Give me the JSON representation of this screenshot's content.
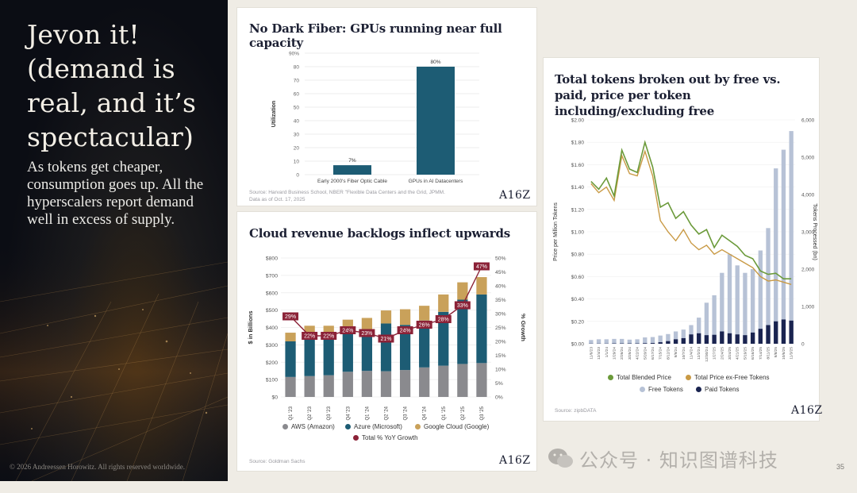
{
  "slide": {
    "headline": "Jevon it! (demand is real, and it’s spectacular)",
    "subtext": "As tokens get cheaper, consumption goes up. All the hyperscalers report demand well in excess of supply.",
    "copyright": "© 2026 Andreessen Horowitz. All rights reserved worldwide.",
    "page_number": "35",
    "watermark": "公众号 · 知识图谱科技"
  },
  "cards": {
    "gpu": {
      "title": "No Dark Fiber: GPUs running near full capacity",
      "source": "Source: Harvard Business School, NBER \"Flexible Data Centers and the Grid, JPMM. Data as of Oct. 17, 2025",
      "logo": "A16Z"
    },
    "cloud": {
      "title": "Cloud revenue backlogs inflect upwards",
      "source": "Source: Goldman Sachs",
      "logo": "A16Z",
      "legend": [
        "AWS (Amazon)",
        "Azure (Microsoft)",
        "Google Cloud (Google)",
        "Total % YoY Growth"
      ]
    },
    "tokens": {
      "title": "Total tokens broken out by free vs. paid, price per token including/excluding free",
      "source": "Source: zipbDATA",
      "logo": "A16Z",
      "legend": [
        "Total Blended Price",
        "Total Price ex-Free Tokens",
        "Free Tokens",
        "Paid Tokens"
      ]
    }
  },
  "colors": {
    "teal": "#1d5c74",
    "aws": "#8a8a8e",
    "azure": "#1d5c74",
    "google": "#c9a15a",
    "growth": "#8b2237",
    "green": "#6b9a3a",
    "gold": "#c99a45",
    "free": "#b7c2d6",
    "paid": "#1a2450"
  },
  "chart_data": [
    {
      "type": "bar",
      "title": "No Dark Fiber: GPUs running near full capacity",
      "categories": [
        "Early 2000's Fiber Optic Cable",
        "GPUs in AI Datacenters"
      ],
      "values": [
        7,
        80
      ],
      "value_labels": [
        "7%",
        "80%"
      ],
      "xlabel": "",
      "ylabel": "Utilization",
      "ylim": [
        0,
        90
      ],
      "yticks": [
        "0",
        "10",
        "20",
        "30",
        "40",
        "50",
        "60",
        "70",
        "80",
        "90%"
      ]
    },
    {
      "type": "bar",
      "stacked": true,
      "title": "Cloud revenue backlogs inflect upwards",
      "categories": [
        "Q1 '23",
        "Q2 '23",
        "Q3 '23",
        "Q4 '23",
        "Q1 '24",
        "Q2 '24",
        "Q3 '24",
        "Q4 '24",
        "Q1 '25",
        "Q2 '25",
        "Q3 '25"
      ],
      "series": [
        {
          "name": "AWS (Amazon)",
          "values": [
            115,
            120,
            125,
            145,
            150,
            148,
            155,
            170,
            180,
            190,
            195
          ]
        },
        {
          "name": "Azure (Microsoft)",
          "values": [
            205,
            240,
            225,
            240,
            240,
            275,
            260,
            270,
            310,
            370,
            395
          ]
        },
        {
          "name": "Google Cloud (Google)",
          "values": [
            50,
            50,
            60,
            60,
            65,
            75,
            90,
            85,
            100,
            100,
            100
          ]
        }
      ],
      "line_series": {
        "name": "Total % YoY Growth",
        "values": [
          29,
          22,
          22,
          24,
          23,
          21,
          24,
          26,
          28,
          33,
          47
        ],
        "labels": [
          "29%",
          "22%",
          "22%",
          "24%",
          "23%",
          "21%",
          "24%",
          "26%",
          "28%",
          "33%",
          "47%"
        ]
      },
      "ylabel": "$ in Billions",
      "y2label": "% Growth",
      "ylim": [
        0,
        800
      ],
      "y2lim": [
        0,
        50
      ],
      "yticks": [
        "$0",
        "$100",
        "$200",
        "$300",
        "$400",
        "$500",
        "$600",
        "$700",
        "$800"
      ],
      "y2ticks": [
        "0%",
        "5%",
        "10%",
        "15%",
        "20%",
        "25%",
        "30%",
        "35%",
        "40%",
        "45%",
        "50%"
      ]
    },
    {
      "type": "bar",
      "mixed_with": "line",
      "title": "Total tokens broken out by free vs. paid, price per token including/excluding free",
      "categories": [
        "11/6/23",
        "12/4/23",
        "1/1/24",
        "1/29/24",
        "2/26/24",
        "3/25/24",
        "4/22/24",
        "5/20/24",
        "6/17/24",
        "7/15/24",
        "8/12/24",
        "9/9/24",
        "10/7/24",
        "11/4/24",
        "12/2/24",
        "12/30/24",
        "1/27/25",
        "2/24/25",
        "3/24/25",
        "4/21/25",
        "5/19/25",
        "6/16/25",
        "7/14/25",
        "8/11/25",
        "9/8/25",
        "10/6/25",
        "11/3/25"
      ],
      "series": [
        {
          "name": "Free Tokens",
          "values": [
            100,
            120,
            120,
            130,
            130,
            110,
            120,
            170,
            180,
            220,
            260,
            330,
            380,
            500,
            700,
            1100,
            1300,
            1900,
            2400,
            2100,
            1900,
            2000,
            2500,
            3100,
            4700,
            5200,
            5700
          ]
        },
        {
          "name": "Paid Tokens",
          "values": [
            5,
            5,
            5,
            10,
            10,
            10,
            10,
            15,
            20,
            40,
            70,
            120,
            150,
            250,
            280,
            230,
            240,
            330,
            280,
            250,
            230,
            300,
            400,
            500,
            600,
            650,
            620
          ]
        },
        {
          "name": "Total Blended Price",
          "values": [
            1.45,
            1.38,
            1.48,
            1.32,
            1.73,
            1.56,
            1.53,
            1.8,
            1.58,
            1.22,
            1.26,
            1.12,
            1.18,
            1.06,
            0.98,
            1.02,
            0.86,
            0.97,
            0.92,
            0.87,
            0.79,
            0.76,
            0.65,
            0.62,
            0.63,
            0.58,
            0.58
          ]
        },
        {
          "name": "Total Price ex-Free Tokens",
          "values": [
            1.43,
            1.35,
            1.4,
            1.28,
            1.68,
            1.52,
            1.5,
            1.72,
            1.5,
            1.1,
            1.0,
            0.92,
            1.02,
            0.9,
            0.84,
            0.88,
            0.8,
            0.84,
            0.8,
            0.76,
            0.72,
            0.68,
            0.6,
            0.56,
            0.57,
            0.55,
            0.53
          ]
        }
      ],
      "ylabel": "Price per Million Tokens",
      "y2label": "Tokens Processed (bn)",
      "ylim": [
        0,
        2.0
      ],
      "y2lim": [
        0,
        6000
      ],
      "yticks": [
        "$0.00",
        "$0.20",
        "$0.40",
        "$0.60",
        "$0.80",
        "$1.00",
        "$1.20",
        "$1.40",
        "$1.60",
        "$1.80",
        "$2.00"
      ],
      "y2ticks": [
        "0",
        "1,000",
        "2,000",
        "3,000",
        "4,000",
        "5,000",
        "6,000"
      ]
    }
  ]
}
